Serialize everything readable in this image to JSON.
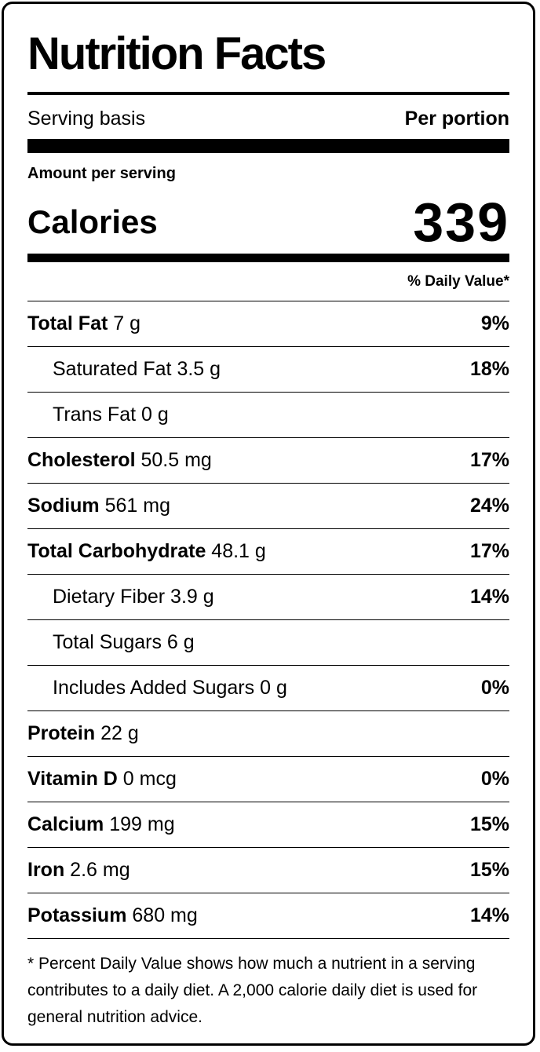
{
  "title": "Nutrition Facts",
  "serving": {
    "label": "Serving basis",
    "value": "Per portion"
  },
  "amount_per_serving": "Amount per serving",
  "calories": {
    "label": "Calories",
    "value": "339"
  },
  "daily_value_header": "% Daily Value*",
  "nutrients": [
    {
      "name": "Total Fat",
      "amount": "7 g",
      "dv": "9%"
    },
    {
      "name": "Saturated Fat",
      "amount": "3.5 g",
      "dv": "18%"
    },
    {
      "name": "Trans Fat",
      "amount": "0 g",
      "dv": ""
    },
    {
      "name": "Cholesterol",
      "amount": "50.5 mg",
      "dv": "17%"
    },
    {
      "name": "Sodium",
      "amount": "561 mg",
      "dv": "24%"
    },
    {
      "name": "Total Carbohydrate",
      "amount": "48.1 g",
      "dv": "17%"
    },
    {
      "name": "Dietary Fiber",
      "amount": "3.9 g",
      "dv": "14%"
    },
    {
      "name": "Total Sugars",
      "amount": "6 g",
      "dv": ""
    },
    {
      "name": "Includes Added Sugars",
      "amount": "0 g",
      "dv": "0%"
    },
    {
      "name": "Protein",
      "amount": "22 g",
      "dv": ""
    },
    {
      "name": "Vitamin D",
      "amount": "0 mcg",
      "dv": "0%"
    },
    {
      "name": "Calcium",
      "amount": "199 mg",
      "dv": "15%"
    },
    {
      "name": "Iron",
      "amount": "2.6 mg",
      "dv": "15%"
    },
    {
      "name": "Potassium",
      "amount": "680 mg",
      "dv": "14%"
    }
  ],
  "footnote": "* Percent Daily Value shows how much a nutrient in a serving contributes to a daily diet. A 2,000 calorie daily diet is used for general nutrition advice."
}
